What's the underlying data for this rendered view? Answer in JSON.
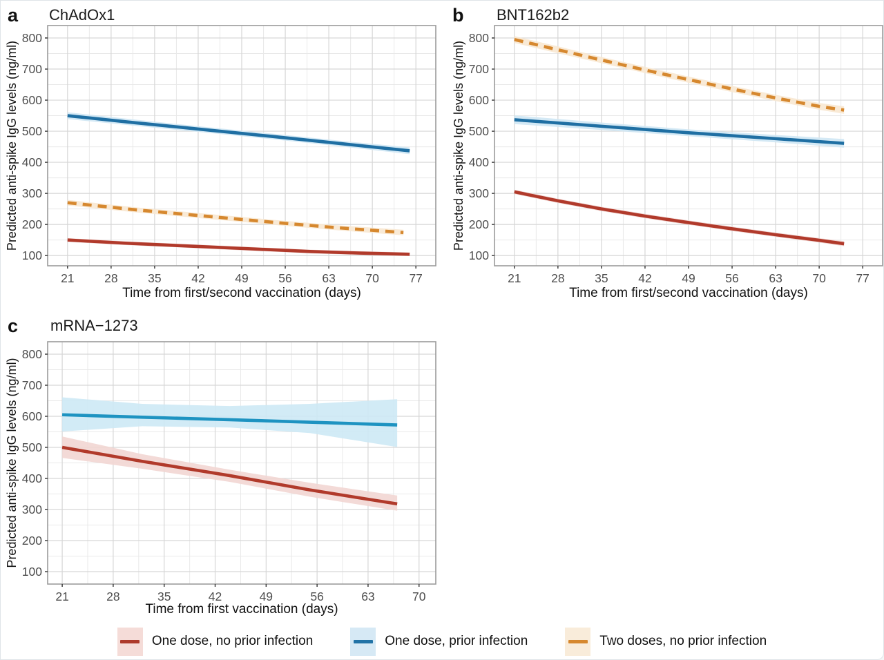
{
  "figure": {
    "y_axis_label": "Predicted anti-spike IgG levels (ng/ml)",
    "background": "#ffffff",
    "grid_major_color": "#d6d6d6",
    "grid_minor_color": "#e9e9e9",
    "panel_border_color": "#9b9b9b",
    "tick_label_color": "#4d4d4d"
  },
  "legend": {
    "items": [
      {
        "label": "One dose, no prior infection",
        "line_color": "#ad3a2b",
        "fill_color": "#f5dcd8"
      },
      {
        "label": "One dose, prior infection",
        "line_color": "#2273a6",
        "fill_color": "#d6e9f5"
      },
      {
        "label": "Two doses, no prior infection",
        "line_color": "#d6882f",
        "fill_color": "#f9ecda"
      }
    ]
  },
  "chart_data": [
    {
      "type": "line",
      "letter": "a",
      "title": "ChAdOx1",
      "xlabel": "Time from first/second vaccination (days)",
      "ylabel": "Predicted anti-spike IgG levels (ng/ml)",
      "x_ticks": [
        21,
        28,
        35,
        42,
        49,
        56,
        63,
        70,
        77
      ],
      "x_domain": [
        17.8,
        80.2
      ],
      "y_ticks": [
        100,
        200,
        300,
        400,
        500,
        600,
        700,
        800
      ],
      "y_domain": [
        67,
        840
      ],
      "grid": true,
      "legend_position": "bottom-shared",
      "series": [
        {
          "name": "One dose, prior infection",
          "color": "#1f6fa3",
          "fill": "#cfe7f4",
          "dashed": false,
          "points": [
            [
              21,
              550,
              539,
              561
            ],
            [
              32,
              527,
              517,
              537
            ],
            [
              43,
              505,
              496,
              514
            ],
            [
              54,
              483,
              474,
              492
            ],
            [
              65,
              460,
              451,
              469
            ],
            [
              76,
              437,
              426,
              448
            ]
          ]
        },
        {
          "name": "Two doses, no prior infection",
          "color": "#d6882f",
          "fill": "#f8e8d2",
          "dashed": true,
          "points": [
            [
              21,
              270,
              261,
              279
            ],
            [
              32,
              247,
              239,
              255
            ],
            [
              43,
              227,
              219,
              235
            ],
            [
              54,
              207,
              199,
              215
            ],
            [
              64,
              190,
              182,
              198
            ],
            [
              75,
              174,
              165,
              183
            ]
          ]
        },
        {
          "name": "One dose, no prior infection",
          "color": "#b13a2b",
          "fill": "#f0d3cf",
          "dashed": false,
          "points": [
            [
              21,
              150,
              144,
              156
            ],
            [
              30,
              140,
              134,
              146
            ],
            [
              40,
              131,
              125,
              137
            ],
            [
              50,
              122,
              116,
              128
            ],
            [
              60,
              113,
              107,
              119
            ],
            [
              68,
              108,
              102,
              114
            ],
            [
              76,
              104,
              98,
              110
            ]
          ]
        }
      ]
    },
    {
      "type": "line",
      "letter": "b",
      "title": "BNT162b2",
      "xlabel": "Time from first/second vaccination (days)",
      "ylabel": "Predicted anti-spike IgG levels (ng/ml)",
      "x_ticks": [
        21,
        28,
        35,
        42,
        49,
        56,
        63,
        70,
        77
      ],
      "x_domain": [
        17.8,
        80.2
      ],
      "y_ticks": [
        100,
        200,
        300,
        400,
        500,
        600,
        700,
        800
      ],
      "y_domain": [
        67,
        840
      ],
      "grid": true,
      "legend_position": "bottom-shared",
      "series": [
        {
          "name": "Two doses, no prior infection",
          "color": "#d6882f",
          "fill": "#f8e8d2",
          "dashed": true,
          "points": [
            [
              21,
              795,
              784,
              806
            ],
            [
              28,
              762,
              751,
              773
            ],
            [
              35,
              729,
              719,
              739
            ],
            [
              42,
              697,
              687,
              707
            ],
            [
              49,
              666,
              656,
              676
            ],
            [
              56,
              636,
              626,
              646
            ],
            [
              63,
              607,
              597,
              617
            ],
            [
              70,
              580,
              569,
              591
            ],
            [
              74,
              568,
              556,
              580
            ]
          ]
        },
        {
          "name": "One dose, prior infection",
          "color": "#1f6fa3",
          "fill": "#cfe7f4",
          "dashed": false,
          "points": [
            [
              21,
              537,
              523,
              551
            ],
            [
              35,
              516,
              504,
              528
            ],
            [
              49,
              495,
              484,
              506
            ],
            [
              63,
              476,
              464,
              488
            ],
            [
              74,
              461,
              447,
              475
            ]
          ]
        },
        {
          "name": "One dose, no prior infection",
          "color": "#b13a2b",
          "fill": "#f0d3cf",
          "dashed": false,
          "points": [
            [
              21,
              305,
              298,
              312
            ],
            [
              28,
              276,
              269,
              283
            ],
            [
              35,
              250,
              243,
              257
            ],
            [
              42,
              227,
              220,
              234
            ],
            [
              49,
              206,
              199,
              213
            ],
            [
              56,
              186,
              179,
              193
            ],
            [
              63,
              167,
              160,
              174
            ],
            [
              70,
              149,
              142,
              156
            ],
            [
              74,
              138,
              130,
              146
            ]
          ]
        }
      ]
    },
    {
      "type": "line",
      "letter": "c",
      "title": "mRNA−1273",
      "xlabel": "Time from first vaccination (days)",
      "ylabel": "Predicted anti-spike IgG levels (ng/ml)",
      "x_ticks": [
        21,
        28,
        35,
        42,
        49,
        56,
        63,
        70
      ],
      "x_domain": [
        19.0,
        72.3
      ],
      "y_ticks": [
        100,
        200,
        300,
        400,
        500,
        600,
        700,
        800
      ],
      "y_domain": [
        60,
        840
      ],
      "grid": true,
      "legend_position": "bottom-shared",
      "series": [
        {
          "name": "One dose, prior infection",
          "color": "#1e93c1",
          "fill": "#cde9f5",
          "dashed": false,
          "points": [
            [
              21,
              605,
              551,
              661
            ],
            [
              32,
              597,
              568,
              640
            ],
            [
              44,
              589,
              564,
              633
            ],
            [
              55,
              581,
              546,
              640
            ],
            [
              67,
              572,
              501,
              655
            ]
          ]
        },
        {
          "name": "One dose, no prior infection",
          "color": "#b13a2b",
          "fill": "#f2d6d3",
          "dashed": false,
          "points": [
            [
              21,
              500,
              466,
              535
            ],
            [
              32,
              455,
              431,
              478
            ],
            [
              44,
              409,
              389,
              428
            ],
            [
              55,
              363,
              341,
              386
            ],
            [
              67,
              318,
              296,
              345
            ]
          ]
        }
      ]
    }
  ]
}
